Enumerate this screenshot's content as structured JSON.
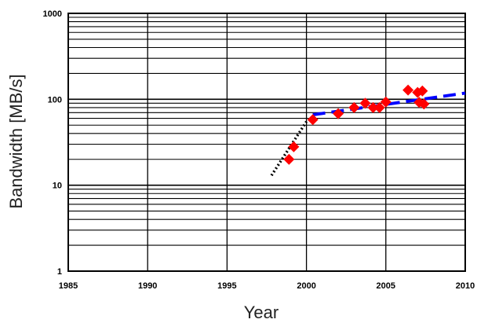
{
  "chart_data": {
    "type": "scatter",
    "title": "",
    "xlabel": "Year",
    "ylabel": "Bandwidth [MB/s]",
    "xlim": [
      1985,
      2010
    ],
    "ylim": [
      1,
      1000
    ],
    "y_scale": "log",
    "grid": true,
    "x_ticks": [
      "1985",
      "1990",
      "1995",
      "2000",
      "2005",
      "2010"
    ],
    "y_ticks": [
      "1",
      "10",
      "100",
      "1000"
    ],
    "legend": "none",
    "series": [
      {
        "marker": "diamond",
        "color": "#ff0000",
        "points": [
          {
            "x": 1998.9,
            "y": 20
          },
          {
            "x": 1999.2,
            "y": 28
          },
          {
            "x": 2000.4,
            "y": 58
          },
          {
            "x": 2002.0,
            "y": 68
          },
          {
            "x": 2003.0,
            "y": 80
          },
          {
            "x": 2003.7,
            "y": 90
          },
          {
            "x": 2004.2,
            "y": 80
          },
          {
            "x": 2004.6,
            "y": 80
          },
          {
            "x": 2005.0,
            "y": 93
          },
          {
            "x": 2006.4,
            "y": 128
          },
          {
            "x": 2007.0,
            "y": 120
          },
          {
            "x": 2007.3,
            "y": 125
          },
          {
            "x": 2007.1,
            "y": 92
          },
          {
            "x": 2007.4,
            "y": 88
          }
        ]
      },
      {
        "line": "dotted",
        "color": "#000000",
        "points": [
          {
            "x": 1997.8,
            "y": 13
          },
          {
            "x": 2000.0,
            "y": 55
          }
        ]
      },
      {
        "line": "dashed",
        "color": "#0000ff",
        "points": [
          {
            "x": 2000.4,
            "y": 66
          },
          {
            "x": 2010.0,
            "y": 118
          }
        ]
      }
    ]
  }
}
